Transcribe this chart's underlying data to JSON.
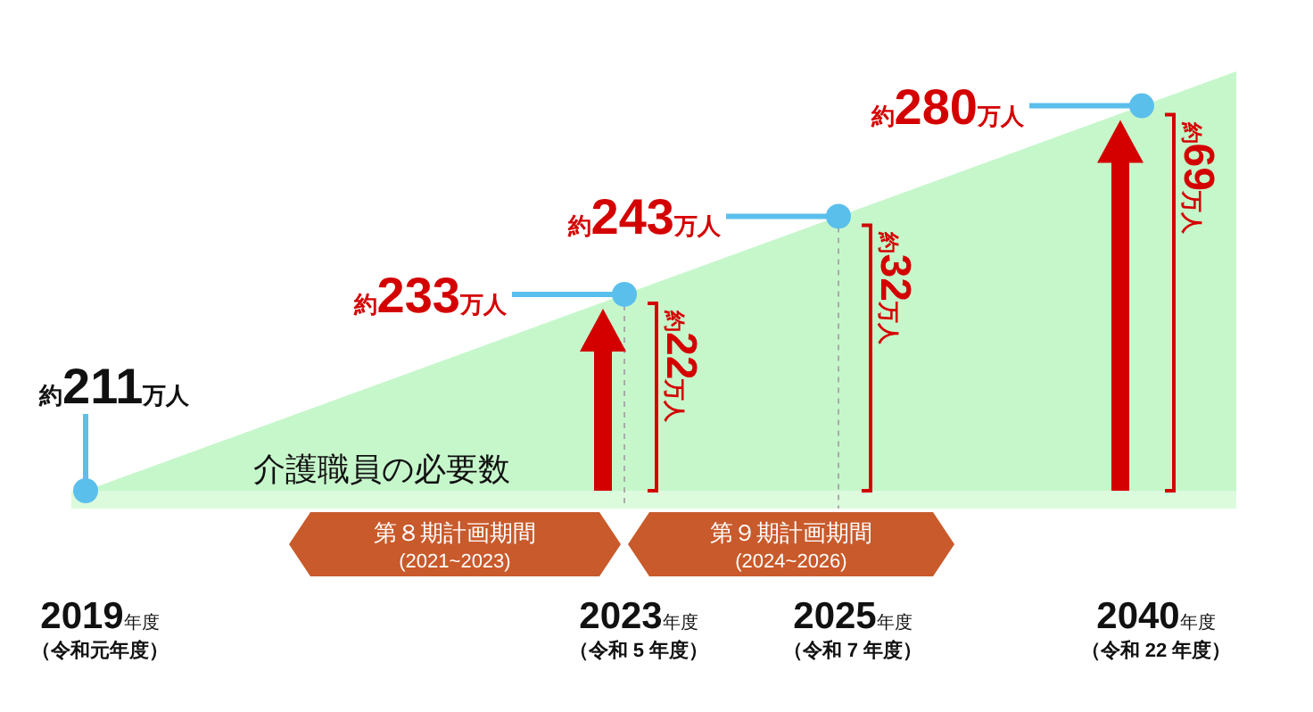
{
  "chart_data": {
    "type": "other",
    "title": "介護職員の必要数",
    "categories": [
      "2019年度",
      "2023年度",
      "2025年度",
      "2040年度"
    ],
    "values": [
      211,
      233,
      243,
      280
    ],
    "value_labels": [
      "約211万人",
      "約233万人",
      "約243万人",
      "約280万人"
    ],
    "color": "#5bbfec",
    "annotations": [
      {
        "text": "（令和元年度）",
        "x": "2019年度"
      },
      {
        "text": "（令和 5 年度）",
        "x": "2023年度"
      },
      {
        "text": "（令和 7 年度）",
        "x": "2025年度"
      },
      {
        "text": "（令和 22 年度）",
        "x": "2040年度"
      },
      {
        "text": "約22万人",
        "x": "2023年度"
      },
      {
        "text": "約32万人",
        "x": "2025年度"
      },
      {
        "text": "約69万人",
        "x": "2040年度"
      },
      "第８期計画期間",
      "(2021~2023)",
      "第９期計画期間",
      "(2024~2026)"
    ]
  }
}
